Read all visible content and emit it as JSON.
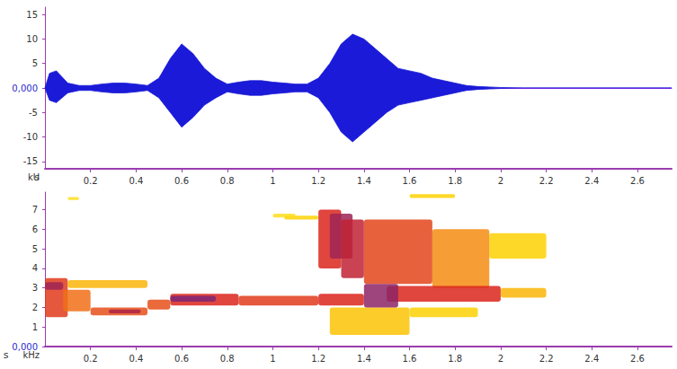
{
  "chart_data": [
    {
      "type": "area",
      "x_label": "s",
      "y_label": "kU",
      "color": "#1a1ad8",
      "x": [
        0,
        0.02,
        0.05,
        0.1,
        0.15,
        0.2,
        0.25,
        0.3,
        0.35,
        0.4,
        0.45,
        0.5,
        0.55,
        0.6,
        0.65,
        0.7,
        0.75,
        0.8,
        0.85,
        0.9,
        0.95,
        1.0,
        1.05,
        1.1,
        1.15,
        1.2,
        1.25,
        1.3,
        1.35,
        1.4,
        1.45,
        1.5,
        1.55,
        1.6,
        1.65,
        1.7,
        1.75,
        1.8,
        1.85,
        1.9,
        1.95,
        2.0,
        2.1,
        2.75
      ],
      "upper": [
        0,
        3,
        3.5,
        1,
        0.5,
        0.5,
        0.8,
        1,
        1,
        0.8,
        0.5,
        2,
        6,
        9,
        7,
        4,
        2,
        0.8,
        1.2,
        1.5,
        1.5,
        1.2,
        1,
        0.8,
        0.8,
        2,
        5,
        9,
        11,
        10,
        8,
        6,
        4,
        3.5,
        3,
        2,
        1.5,
        1,
        0.5,
        0.3,
        0.2,
        0.1,
        0,
        0
      ],
      "lower": [
        0,
        -2.5,
        -3,
        -1,
        -0.5,
        -0.5,
        -0.8,
        -1,
        -1,
        -0.8,
        -0.5,
        -2,
        -5,
        -8,
        -6,
        -3.5,
        -2,
        -0.8,
        -1.2,
        -1.5,
        -1.5,
        -1.2,
        -1,
        -0.8,
        -0.8,
        -2,
        -5,
        -9,
        -11,
        -9,
        -7,
        -5,
        -3.5,
        -3,
        -2.5,
        -2,
        -1.5,
        -1,
        -0.5,
        -0.3,
        -0.2,
        -0.1,
        0,
        0
      ],
      "xlim": [
        0,
        2.75
      ],
      "xticks": [
        0.2,
        0.4,
        0.6,
        0.8,
        1,
        1.2,
        1.4,
        1.6,
        1.8,
        2,
        2.2,
        2.4,
        2.6
      ],
      "ylim": [
        -16.5,
        16.5
      ],
      "yticks": [
        -15,
        -10,
        -5,
        {
          "value": 0,
          "label": "0,000"
        },
        5,
        10,
        15
      ]
    },
    {
      "type": "spectrogram",
      "x_label": "s",
      "y_label": "kHz",
      "intensity_range": [
        0,
        3
      ],
      "cells": [
        [
          1.25,
          1.6,
          0.6,
          2.0,
          0.9
        ],
        [
          1.6,
          1.9,
          1.5,
          2.0,
          0.8
        ],
        [
          0.0,
          0.1,
          1.5,
          3.5,
          2
        ],
        [
          0.0,
          0.08,
          2.9,
          3.3,
          2.6
        ],
        [
          0.1,
          0.45,
          3.0,
          3.4,
          1
        ],
        [
          0.08,
          0.2,
          1.8,
          2.9,
          1.5
        ],
        [
          0.2,
          0.45,
          1.6,
          2.0,
          1.8
        ],
        [
          0.28,
          0.42,
          1.7,
          1.9,
          2.5
        ],
        [
          0.45,
          0.55,
          1.9,
          2.4,
          1.8
        ],
        [
          0.55,
          0.85,
          2.1,
          2.7,
          2.2
        ],
        [
          0.55,
          0.75,
          2.3,
          2.6,
          2.8
        ],
        [
          0.85,
          1.2,
          2.1,
          2.6,
          2.0
        ],
        [
          1.2,
          1.4,
          2.1,
          2.7,
          2.2
        ],
        [
          1.05,
          1.2,
          6.5,
          6.7,
          0.8
        ],
        [
          1.0,
          1.1,
          6.6,
          6.8,
          0.6
        ],
        [
          0.1,
          0.15,
          7.5,
          7.65,
          0.6
        ],
        [
          1.6,
          1.8,
          7.6,
          7.8,
          0.8
        ],
        [
          1.95,
          2.2,
          4.5,
          5.8,
          0.8
        ],
        [
          1.7,
          1.95,
          3.0,
          6.0,
          1.3
        ],
        [
          1.4,
          1.7,
          3.2,
          6.5,
          1.9
        ],
        [
          1.2,
          1.3,
          4.0,
          7.0,
          2.2
        ],
        [
          1.25,
          1.35,
          4.5,
          6.8,
          2.6
        ],
        [
          1.3,
          1.4,
          3.5,
          6.5,
          2.4
        ],
        [
          1.5,
          2.0,
          2.3,
          3.1,
          2.2
        ],
        [
          2.0,
          2.2,
          2.5,
          3.0,
          1.0
        ],
        [
          1.4,
          1.55,
          2.0,
          3.2,
          2.7
        ]
      ],
      "xlim": [
        0,
        2.75
      ],
      "xticks": [
        0.2,
        0.4,
        0.6,
        0.8,
        1,
        1.2,
        1.4,
        1.6,
        1.8,
        2,
        2.2,
        2.4,
        2.6
      ],
      "ylim": [
        0,
        7.9
      ],
      "yticks": [
        {
          "value": 0,
          "label": "0,000"
        },
        1,
        2,
        3,
        4,
        5,
        6,
        7
      ]
    }
  ]
}
